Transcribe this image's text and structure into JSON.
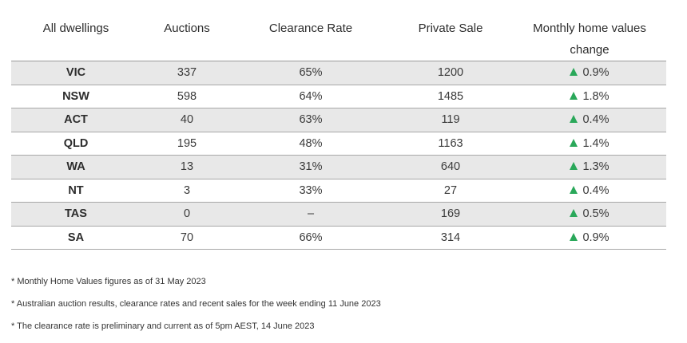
{
  "table": {
    "headers": [
      "All dwellings",
      "Auctions",
      "Clearance Rate",
      "Private Sale",
      "Monthly home values change"
    ],
    "rows": [
      {
        "state": "VIC",
        "auctions": "337",
        "clearance_rate": "65%",
        "private_sale": "1200",
        "monthly_change": "0.9%"
      },
      {
        "state": "NSW",
        "auctions": "598",
        "clearance_rate": "64%",
        "private_sale": "1485",
        "monthly_change": "1.8%"
      },
      {
        "state": "ACT",
        "auctions": "40",
        "clearance_rate": "63%",
        "private_sale": "119",
        "monthly_change": "0.4%"
      },
      {
        "state": "QLD",
        "auctions": "195",
        "clearance_rate": "48%",
        "private_sale": "1163",
        "monthly_change": "1.4%"
      },
      {
        "state": "WA",
        "auctions": "13",
        "clearance_rate": "31%",
        "private_sale": "640",
        "monthly_change": "1.3%"
      },
      {
        "state": "NT",
        "auctions": "3",
        "clearance_rate": "33%",
        "private_sale": "27",
        "monthly_change": "0.4%"
      },
      {
        "state": "TAS",
        "auctions": "0",
        "clearance_rate": "–",
        "private_sale": "169",
        "monthly_change": "0.5%"
      },
      {
        "state": "SA",
        "auctions": "70",
        "clearance_rate": "66%",
        "private_sale": "314",
        "monthly_change": "0.9%"
      }
    ],
    "change_icon": "up-arrow-icon",
    "change_icon_color": "#2aa85a",
    "stripe_color": "#e8e8e8"
  },
  "notes": [
    "* Monthly Home Values figures as of 31 May 2023",
    "* Australian auction results, clearance rates and recent sales for the week ending 11 June 2023",
    "* The clearance rate is preliminary and current as of 5pm AEST, 14 June 2023"
  ]
}
